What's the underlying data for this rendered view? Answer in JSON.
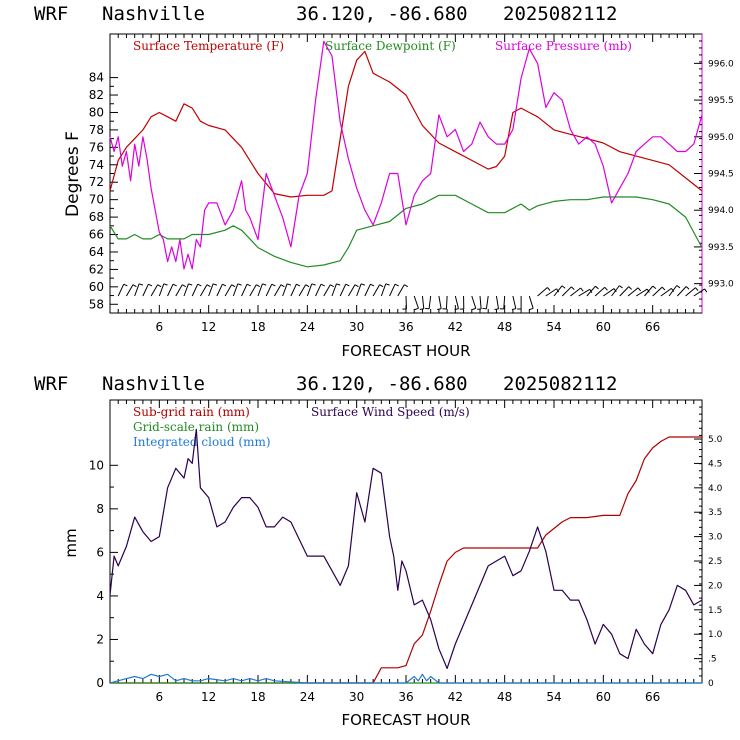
{
  "header": {
    "model": "WRF",
    "site": "Nashville",
    "coords": "36.120, -86.680",
    "init": "2025082112"
  },
  "colors": {
    "temperature": "#c00000",
    "dewpoint": "#228b22",
    "pressure": "#dd00dd",
    "subgrid_rain": "#b00000",
    "gridscale_rain": "#228b22",
    "cloud": "#1e7ad6",
    "wind": "#2a0050",
    "barb": "#000000"
  },
  "chart_data": [
    {
      "type": "line",
      "panel": "top",
      "legend": [
        "Surface Temperature (F)",
        "Surface Dewpoint (F)",
        "Surface Pressure (mb)"
      ],
      "ylabel": "Degrees F",
      "xlabel": "FORECAST HOUR",
      "xlim": [
        0,
        72
      ],
      "ylim": [
        57,
        89
      ],
      "y2lim": [
        992.6,
        996.4
      ],
      "x_ticks": [
        6,
        12,
        18,
        24,
        30,
        36,
        42,
        48,
        54,
        60,
        66
      ],
      "y_ticks": [
        58,
        60,
        62,
        64,
        66,
        68,
        70,
        72,
        74,
        76,
        78,
        80,
        82,
        84
      ],
      "y2_ticks": [
        "993.0",
        "993.5",
        "994.0",
        "994.5",
        "995.0",
        "995.5",
        "996.0"
      ],
      "y2_tick_values": [
        993.0,
        993.5,
        994.0,
        994.5,
        995.0,
        995.5,
        996.0
      ],
      "series": [
        {
          "name": "Surface Temperature (F)",
          "axis": "left",
          "x": [
            0,
            1,
            2,
            3,
            4,
            5,
            6,
            7,
            8,
            9,
            10,
            11,
            12,
            14,
            16,
            18,
            20,
            22,
            24,
            26,
            27,
            28,
            29,
            30,
            31,
            32,
            33,
            34,
            36,
            38,
            40,
            42,
            44,
            46,
            47,
            48,
            49,
            50,
            51,
            52,
            54,
            56,
            58,
            60,
            62,
            64,
            66,
            68,
            70,
            72
          ],
          "y": [
            71,
            74.5,
            76,
            77,
            78,
            79.5,
            80,
            79.5,
            79,
            81,
            80.5,
            79,
            78.5,
            78,
            76,
            73,
            70.7,
            70.3,
            70.5,
            70.5,
            71,
            77,
            83,
            86,
            87,
            84.5,
            84,
            83.5,
            82,
            78.5,
            76.5,
            75.5,
            74.5,
            73.5,
            73.8,
            75,
            80,
            80.5,
            80,
            79.5,
            78,
            77.5,
            77,
            76.5,
            75.5,
            75,
            74.5,
            74,
            72.5,
            71
          ]
        },
        {
          "name": "Surface Dewpoint (F)",
          "axis": "left",
          "x": [
            0,
            1,
            2,
            3,
            4,
            5,
            6,
            7,
            8,
            9,
            10,
            12,
            14,
            15,
            16,
            18,
            20,
            22,
            24,
            26,
            28,
            29,
            30,
            32,
            34,
            36,
            38,
            40,
            42,
            44,
            46,
            48,
            50,
            51,
            52,
            54,
            56,
            58,
            60,
            62,
            64,
            66,
            68,
            70,
            72
          ],
          "y": [
            67,
            65.5,
            65.5,
            66,
            65.5,
            65.5,
            66,
            65.5,
            65.5,
            65.5,
            66,
            66,
            66.5,
            67,
            66.5,
            64.5,
            63.5,
            62.8,
            62.3,
            62.5,
            63,
            64.5,
            66.5,
            67,
            67.5,
            69,
            69.5,
            70.5,
            70.5,
            69.5,
            68.5,
            68.5,
            69.5,
            68.8,
            69.3,
            69.8,
            70,
            70,
            70.3,
            70.3,
            70.3,
            70,
            69.5,
            68,
            64.5
          ]
        },
        {
          "name": "Surface Pressure (mb)",
          "axis": "right",
          "x": [
            0,
            0.5,
            1,
            1.5,
            2,
            2.5,
            3,
            3.5,
            4,
            4.5,
            5,
            5.5,
            6,
            6.5,
            7,
            7.5,
            8,
            8.5,
            9,
            9.5,
            10,
            10.5,
            11,
            11.5,
            12,
            13,
            14,
            15,
            16,
            16.5,
            17,
            18,
            19,
            20,
            21,
            22,
            23,
            24,
            25,
            26,
            27,
            28,
            29,
            30,
            31,
            32,
            33,
            34,
            35,
            36,
            37,
            38,
            39,
            40,
            41,
            42,
            43,
            44,
            45,
            46,
            47,
            48,
            49,
            50,
            51,
            52,
            53,
            54,
            55,
            56,
            57,
            58,
            59,
            60,
            61,
            62,
            63,
            64,
            65,
            66,
            67,
            68,
            69,
            70,
            71,
            72
          ],
          "y": [
            995.0,
            994.8,
            995.0,
            994.6,
            994.8,
            994.4,
            994.9,
            994.6,
            995.0,
            994.7,
            994.3,
            994.0,
            993.7,
            993.6,
            993.3,
            993.5,
            993.3,
            993.6,
            993.2,
            993.4,
            993.2,
            993.6,
            993.5,
            994.0,
            994.1,
            994.1,
            993.8,
            994.0,
            994.4,
            994.0,
            993.9,
            993.6,
            994.5,
            994.2,
            993.9,
            993.5,
            994.2,
            994.5,
            995.5,
            996.3,
            996.1,
            995.2,
            994.7,
            994.3,
            994.0,
            993.8,
            994.1,
            994.5,
            994.5,
            993.8,
            994.2,
            994.4,
            994.5,
            995.3,
            995.0,
            995.1,
            994.8,
            994.9,
            995.2,
            995.0,
            994.9,
            994.9,
            995.1,
            995.8,
            996.2,
            996.0,
            995.4,
            995.6,
            995.5,
            995.1,
            994.9,
            995.0,
            994.9,
            994.6,
            994.1,
            994.3,
            994.5,
            994.8,
            994.9,
            995.0,
            995.0,
            994.9,
            994.8,
            994.8,
            994.9,
            995.3
          ]
        }
      ]
    },
    {
      "type": "line",
      "panel": "bottom",
      "legend": [
        "Sub-grid rain (mm)",
        "Grid-scale rain (mm)",
        "Integrated cloud (mm)",
        "Surface Wind Speed (m/s)"
      ],
      "ylabel": "mm",
      "xlabel": "FORECAST HOUR",
      "xlim": [
        0,
        72
      ],
      "ylim": [
        0,
        13
      ],
      "y2lim": [
        0,
        5.8
      ],
      "x_ticks": [
        6,
        12,
        18,
        24,
        30,
        36,
        42,
        48,
        54,
        60,
        66
      ],
      "y_ticks": [
        0,
        2,
        4,
        6,
        8,
        10
      ],
      "y2_ticks": [
        "0",
        ".5",
        "1.0",
        "1.5",
        "2.0",
        "2.5",
        "3.0",
        "3.5",
        "4.0",
        "4.5",
        "5.0"
      ],
      "y2_tick_values": [
        0,
        0.5,
        1.0,
        1.5,
        2.0,
        2.5,
        3.0,
        3.5,
        4.0,
        4.5,
        5.0
      ],
      "series": [
        {
          "name": "Sub-grid rain (mm)",
          "axis": "left",
          "x": [
            0,
            32,
            33,
            35,
            36,
            37,
            38,
            39,
            40,
            41,
            42,
            43,
            44,
            46,
            48,
            50,
            52,
            53,
            55,
            56,
            58,
            60,
            62,
            63,
            64,
            65,
            66,
            67,
            68,
            69,
            70,
            72
          ],
          "y": [
            0,
            0,
            0.7,
            0.7,
            0.8,
            1.8,
            2.2,
            3.3,
            4.5,
            5.6,
            6.0,
            6.2,
            6.2,
            6.2,
            6.2,
            6.2,
            6.2,
            6.8,
            7.4,
            7.6,
            7.6,
            7.7,
            7.7,
            8.7,
            9.3,
            10.3,
            10.8,
            11.1,
            11.3,
            11.3,
            11.3,
            11.3
          ]
        },
        {
          "name": "Grid-scale rain (mm)",
          "axis": "left",
          "x": [
            0,
            72
          ],
          "y": [
            0,
            0
          ]
        },
        {
          "name": "Integrated cloud (mm)",
          "axis": "left",
          "x": [
            0,
            1,
            2,
            3,
            4,
            5,
            6,
            7,
            8,
            9,
            10,
            11,
            12,
            14,
            15,
            16,
            17,
            18,
            19,
            20,
            24,
            36,
            37,
            37.5,
            38,
            38.5,
            39,
            40,
            72
          ],
          "y": [
            0,
            0.1,
            0.2,
            0.3,
            0.2,
            0.4,
            0.3,
            0.4,
            0.1,
            0.2,
            0.1,
            0.1,
            0.2,
            0.1,
            0.2,
            0.1,
            0.2,
            0.1,
            0.2,
            0.1,
            0,
            0,
            0.3,
            0.1,
            0.4,
            0.1,
            0.3,
            0,
            0
          ]
        },
        {
          "name": "Surface Wind Speed (m/s)",
          "axis": "right",
          "x": [
            0,
            0.5,
            1,
            1.5,
            2,
            3,
            4,
            5,
            6,
            7,
            8,
            9,
            9.5,
            10,
            10.5,
            11,
            12,
            13,
            14,
            15,
            16,
            17,
            18,
            19,
            20,
            21,
            22,
            24,
            26,
            28,
            29,
            30,
            31,
            32,
            33,
            34,
            34.5,
            35,
            35.5,
            36,
            37,
            38,
            39,
            40,
            41,
            42,
            43,
            44,
            45,
            46,
            47,
            48,
            49,
            50,
            51,
            52,
            53,
            54,
            55,
            56,
            57,
            58,
            59,
            60,
            61,
            62,
            63,
            64,
            65,
            66,
            67,
            68,
            69,
            70,
            71,
            72
          ],
          "y": [
            1.8,
            2.6,
            2.4,
            2.6,
            2.8,
            3.4,
            3.1,
            2.9,
            3.0,
            4.0,
            4.4,
            4.2,
            4.6,
            4.5,
            5.2,
            4.0,
            3.8,
            3.2,
            3.3,
            3.6,
            3.8,
            3.8,
            3.6,
            3.2,
            3.2,
            3.4,
            3.3,
            2.6,
            2.6,
            2.0,
            2.4,
            3.9,
            3.3,
            4.4,
            4.3,
            3.0,
            2.6,
            1.9,
            2.5,
            2.3,
            1.6,
            1.7,
            1.3,
            0.7,
            0.3,
            0.8,
            1.2,
            1.6,
            2.0,
            2.4,
            2.5,
            2.6,
            2.2,
            2.3,
            2.7,
            3.2,
            2.7,
            1.9,
            1.9,
            1.7,
            1.7,
            1.3,
            0.8,
            1.2,
            1.0,
            0.6,
            0.5,
            1.1,
            0.8,
            0.6,
            1.2,
            1.5,
            2.0,
            1.9,
            1.6,
            1.7
          ]
        }
      ]
    }
  ]
}
